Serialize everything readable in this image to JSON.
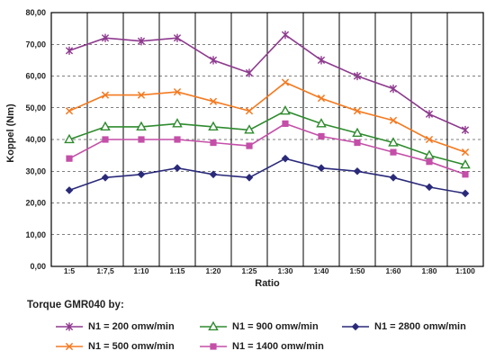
{
  "chart_data": {
    "type": "line",
    "title": "",
    "xlabel": "Ratio",
    "ylabel": "Koppel (Nm)",
    "categories": [
      "1:5",
      "1:7,5",
      "1:10",
      "1:15",
      "1:20",
      "1:25",
      "1:30",
      "1:40",
      "1:50",
      "1:60",
      "1:80",
      "1:100"
    ],
    "y_ticks": [
      "0,00",
      "10,00",
      "20,00",
      "30,00",
      "40,00",
      "50,00",
      "60,00",
      "70,00",
      "80,00"
    ],
    "ylim": [
      0,
      80
    ],
    "grid": "vertical lines at each category; horizontal lines at each 10 Nm",
    "legend_position": "bottom",
    "legend_title": "Torque GMR040 by:",
    "series": [
      {
        "name": "N1 = 200 omw/min",
        "color": "#8e3a8e",
        "marker": "asterisk",
        "values": [
          68,
          72,
          71,
          72,
          65,
          61,
          73,
          65,
          60,
          56,
          48,
          43
        ]
      },
      {
        "name": "N1 = 500 omw/min",
        "color": "#f47a20",
        "marker": "x",
        "values": [
          49,
          54,
          54,
          55,
          52,
          49,
          58,
          53,
          49,
          46,
          40,
          36
        ]
      },
      {
        "name": "N1 = 900 omw/min",
        "color": "#2e8b2e",
        "marker": "triangle",
        "values": [
          40,
          44,
          44,
          45,
          44,
          43,
          49,
          45,
          42,
          39,
          35,
          32
        ]
      },
      {
        "name": "N1 = 1400 omw/min",
        "color": "#c44fa8",
        "marker": "square",
        "values": [
          34,
          40,
          40,
          40,
          39,
          38,
          45,
          41,
          39,
          36,
          33,
          29
        ]
      },
      {
        "name": "N1 = 2800 omw/min",
        "color": "#2a2a7a",
        "marker": "diamond",
        "values": [
          24,
          28,
          29,
          31,
          29,
          28,
          34,
          31,
          30,
          28,
          25,
          23
        ]
      }
    ]
  }
}
